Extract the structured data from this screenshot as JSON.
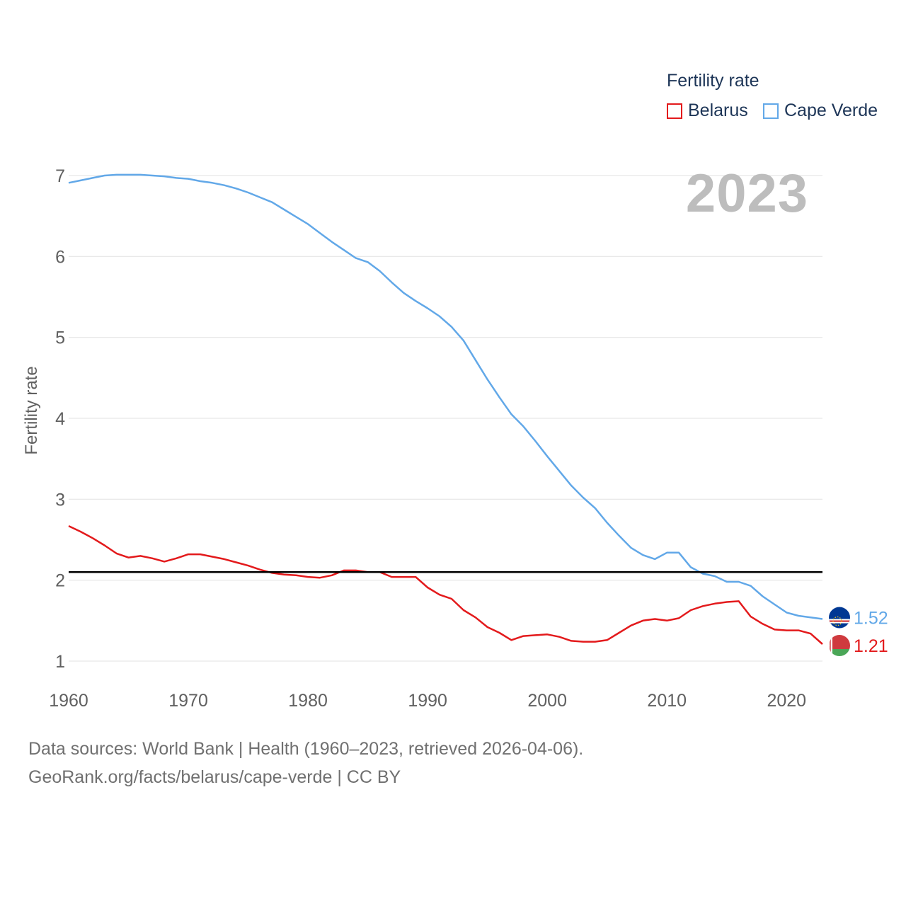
{
  "legend": {
    "title": "Fertility rate",
    "items": [
      {
        "label": "Belarus",
        "color": "#e31a1c"
      },
      {
        "label": "Cape Verde",
        "color": "#62a8e8"
      }
    ]
  },
  "year_label": "2023",
  "footer": {
    "line1": "Data sources: World Bank | Health (1960–2023, retrieved 2026-04-06).",
    "line2": "GeoRank.org/facts/belarus/cape-verde | CC BY"
  },
  "chart_data": {
    "type": "line",
    "title": "Fertility rate",
    "xlabel": "",
    "ylabel": "Fertility rate",
    "xlim": [
      1960,
      2023
    ],
    "ylim": [
      1,
      7
    ],
    "x_ticks": [
      1960,
      1970,
      1980,
      1990,
      2000,
      2010,
      2020
    ],
    "y_ticks": [
      1,
      2,
      3,
      4,
      5,
      6,
      7
    ],
    "grid": true,
    "reference_line": 2.1,
    "legend_position": "top-right",
    "x": [
      1960,
      1961,
      1962,
      1963,
      1964,
      1965,
      1966,
      1967,
      1968,
      1969,
      1970,
      1971,
      1972,
      1973,
      1974,
      1975,
      1976,
      1977,
      1978,
      1979,
      1980,
      1981,
      1982,
      1983,
      1984,
      1985,
      1986,
      1987,
      1988,
      1989,
      1990,
      1991,
      1992,
      1993,
      1994,
      1995,
      1996,
      1997,
      1998,
      1999,
      2000,
      2001,
      2002,
      2003,
      2004,
      2005,
      2006,
      2007,
      2008,
      2009,
      2010,
      2011,
      2012,
      2013,
      2014,
      2015,
      2016,
      2017,
      2018,
      2019,
      2020,
      2021,
      2022,
      2023
    ],
    "series": [
      {
        "name": "Belarus",
        "color": "#e31a1c",
        "end_label": "1.21",
        "values": [
          2.67,
          2.6,
          2.52,
          2.43,
          2.33,
          2.28,
          2.3,
          2.27,
          2.23,
          2.27,
          2.32,
          2.32,
          2.29,
          2.26,
          2.22,
          2.18,
          2.13,
          2.09,
          2.07,
          2.06,
          2.04,
          2.03,
          2.06,
          2.12,
          2.12,
          2.1,
          2.1,
          2.04,
          2.04,
          2.04,
          1.91,
          1.82,
          1.77,
          1.63,
          1.54,
          1.42,
          1.35,
          1.26,
          1.31,
          1.32,
          1.33,
          1.3,
          1.25,
          1.24,
          1.24,
          1.26,
          1.35,
          1.44,
          1.5,
          1.52,
          1.5,
          1.53,
          1.63,
          1.68,
          1.71,
          1.73,
          1.74,
          1.55,
          1.46,
          1.39,
          1.38,
          1.38,
          1.34,
          1.21
        ]
      },
      {
        "name": "Cape Verde",
        "color": "#62a8e8",
        "end_label": "1.52",
        "values": [
          6.91,
          6.94,
          6.97,
          7.0,
          7.01,
          7.01,
          7.01,
          7.0,
          6.99,
          6.97,
          6.96,
          6.93,
          6.91,
          6.88,
          6.84,
          6.79,
          6.73,
          6.67,
          6.58,
          6.49,
          6.4,
          6.29,
          6.18,
          6.08,
          5.98,
          5.93,
          5.82,
          5.68,
          5.55,
          5.45,
          5.36,
          5.26,
          5.13,
          4.96,
          4.72,
          4.48,
          4.26,
          4.05,
          3.9,
          3.72,
          3.53,
          3.35,
          3.17,
          3.02,
          2.89,
          2.71,
          2.55,
          2.4,
          2.31,
          2.26,
          2.34,
          2.34,
          2.16,
          2.08,
          2.05,
          1.98,
          1.98,
          1.93,
          1.8,
          1.7,
          1.6,
          1.56,
          1.54,
          1.52
        ]
      }
    ]
  }
}
